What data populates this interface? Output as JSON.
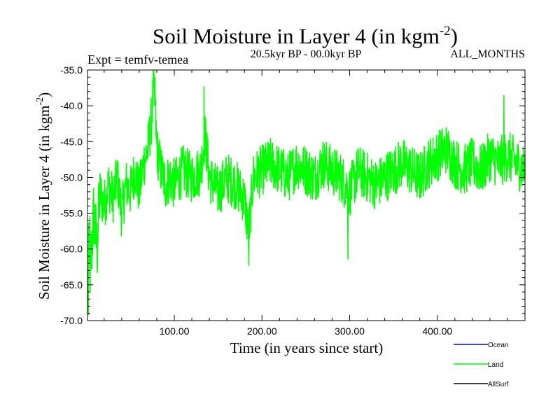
{
  "chart_data": {
    "type": "line",
    "title": "Soil Moisture in Layer 4 (in kgm",
    "title_sup": "-2",
    "title_close": ")",
    "subtitle_left": "Expt = temfv-temea",
    "subtitle_center": "20.5kyr BP - 00.0kyr BP",
    "subtitle_right": "ALL_MONTHS",
    "xlabel": "Time (in years since start)",
    "ylabel": "Soil Moisture in Layer 4 (in kgm",
    "ylabel_sup": "-2",
    "ylabel_close": ")",
    "xlim": [
      1,
      500
    ],
    "ylim": [
      -70,
      -35
    ],
    "xticks": [
      "100.00",
      "200.00",
      "300.00",
      "400.00"
    ],
    "xtick_values": [
      100,
      200,
      300,
      400
    ],
    "yticks": [
      "-35.0",
      "-40.0",
      "-45.0",
      "-50.0",
      "-55.0",
      "-60.0",
      "-65.0",
      "-70.0"
    ],
    "ytick_values": [
      -35,
      -40,
      -45,
      -50,
      -55,
      -60,
      -65,
      -70
    ],
    "legend_position": "bottom-right",
    "legend": [
      {
        "name": "Ocean",
        "color": "#0000ff"
      },
      {
        "name": "Land",
        "color": "#00ff00"
      },
      {
        "name": "AllSurf",
        "color": "#000000"
      }
    ],
    "series": [
      {
        "name": "Land",
        "color": "#00ff00",
        "x_start": 1,
        "x_step": 1,
        "anchors": [
          [
            1,
            -68
          ],
          [
            3,
            -58
          ],
          [
            5,
            -62
          ],
          [
            8,
            -55
          ],
          [
            12,
            -60
          ],
          [
            15,
            -52
          ],
          [
            20,
            -54
          ],
          [
            25,
            -51
          ],
          [
            30,
            -53
          ],
          [
            35,
            -50
          ],
          [
            40,
            -55
          ],
          [
            45,
            -51
          ],
          [
            50,
            -52
          ],
          [
            55,
            -49
          ],
          [
            60,
            -52
          ],
          [
            65,
            -48
          ],
          [
            70,
            -46
          ],
          [
            74,
            -42
          ],
          [
            76,
            -38
          ],
          [
            78,
            -40
          ],
          [
            80,
            -46
          ],
          [
            85,
            -49
          ],
          [
            90,
            -51
          ],
          [
            95,
            -50
          ],
          [
            100,
            -51
          ],
          [
            110,
            -49
          ],
          [
            120,
            -50
          ],
          [
            130,
            -49
          ],
          [
            135,
            -44
          ],
          [
            140,
            -50
          ],
          [
            150,
            -52
          ],
          [
            160,
            -50
          ],
          [
            170,
            -51
          ],
          [
            180,
            -53
          ],
          [
            185,
            -58
          ],
          [
            190,
            -50
          ],
          [
            200,
            -49
          ],
          [
            210,
            -48
          ],
          [
            220,
            -49
          ],
          [
            230,
            -50
          ],
          [
            240,
            -48
          ],
          [
            250,
            -49
          ],
          [
            260,
            -50
          ],
          [
            270,
            -48
          ],
          [
            280,
            -49
          ],
          [
            290,
            -50
          ],
          [
            300,
            -52
          ],
          [
            310,
            -49
          ],
          [
            320,
            -50
          ],
          [
            330,
            -51
          ],
          [
            340,
            -50
          ],
          [
            350,
            -49
          ],
          [
            360,
            -48
          ],
          [
            370,
            -49
          ],
          [
            380,
            -50
          ],
          [
            390,
            -48
          ],
          [
            400,
            -47
          ],
          [
            410,
            -46
          ],
          [
            420,
            -48
          ],
          [
            430,
            -49
          ],
          [
            440,
            -48
          ],
          [
            450,
            -49
          ],
          [
            460,
            -47
          ],
          [
            470,
            -48
          ],
          [
            480,
            -47
          ],
          [
            490,
            -48
          ],
          [
            500,
            -49
          ]
        ],
        "noise_amplitude": 3.6,
        "spikes": [
          [
            77,
            -36.2
          ],
          [
            78,
            -36.0
          ],
          [
            134,
            -37.3
          ],
          [
            185,
            -62.3
          ],
          [
            298,
            -61.4
          ],
          [
            476,
            -38.6
          ],
          [
            2,
            -69.2
          ],
          [
            4,
            -66.0
          ]
        ]
      }
    ]
  }
}
